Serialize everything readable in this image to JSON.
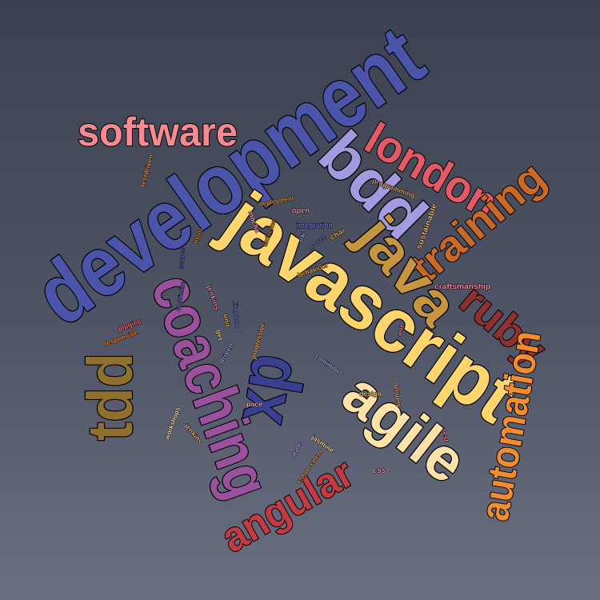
{
  "words": [
    {
      "text": "development",
      "color": "#4a54a8"
    },
    {
      "text": "javascript",
      "color": "#ffd56e"
    },
    {
      "text": "coaching",
      "color": "#98519a"
    },
    {
      "text": "software",
      "color": "#f58a92"
    },
    {
      "text": "london",
      "color": "#e35966"
    },
    {
      "text": "bdd",
      "color": "#a39ae0"
    },
    {
      "text": "training",
      "color": "#c8692a"
    },
    {
      "text": "java",
      "color": "#c69540"
    },
    {
      "text": "ruby",
      "color": "#8e2f30"
    },
    {
      "text": "automation",
      "color": "#f28d2f"
    },
    {
      "text": "agile",
      "color": "#ffe2a8"
    },
    {
      "text": "angular",
      "color": "#c33a42"
    },
    {
      "text": "tdd",
      "color": "#8f702e"
    },
    {
      "text": "xp",
      "color": "#3a3f8f"
    },
    {
      "text": "craftsmanship",
      "color": "#e88ca2"
    },
    {
      "text": "sustainable",
      "color": "#e8b77a"
    },
    {
      "text": "programming",
      "color": "#c09a6a"
    },
    {
      "text": "testdriven",
      "color": "#d88a5a"
    },
    {
      "text": "deployment",
      "color": "#d59030"
    },
    {
      "text": "open",
      "color": "#e28792"
    },
    {
      "text": "integration",
      "color": "#6d73c0"
    },
    {
      "text": "mocha",
      "color": "#f0a0a8"
    },
    {
      "text": "extreme",
      "color": "#c07a3a"
    },
    {
      "text": "chai",
      "color": "#d6a25a"
    },
    {
      "text": "ok",
      "color": "#8a8fd0"
    },
    {
      "text": "maven",
      "color": "#6b73b9"
    },
    {
      "text": "html",
      "color": "#c8783a"
    },
    {
      "text": "source",
      "color": "#5860a8"
    },
    {
      "text": "behaviour",
      "color": "#e0a040"
    },
    {
      "text": "customise",
      "color": "#6a72c0"
    },
    {
      "text": "jenkins",
      "color": "#d88aa0"
    },
    {
      "text": "kingdom",
      "color": "#6d73c0"
    },
    {
      "text": "unit",
      "color": "#d8a050"
    },
    {
      "text": "plugins",
      "color": "#e86870"
    },
    {
      "text": "responsive",
      "color": "#f08030"
    },
    {
      "text": "progressive",
      "color": "#e0a058"
    },
    {
      "text": "ant",
      "color": "#d87890"
    },
    {
      "text": "get",
      "color": "#d8c080"
    },
    {
      "text": "driven",
      "color": "#a098d8"
    },
    {
      "text": "continuous",
      "color": "#9aa0e0"
    },
    {
      "text": "design",
      "color": "#e8c080"
    },
    {
      "text": "delivery",
      "color": "#d8a070"
    },
    {
      "text": "pace",
      "color": "#f0a8b0"
    },
    {
      "text": "workshops",
      "color": "#f0d8a0"
    },
    {
      "text": "jenkins",
      "color": "#d8b080"
    },
    {
      "text": "test",
      "color": "#e88090"
    },
    {
      "text": "jasmine",
      "color": "#f0d090"
    },
    {
      "text": "made",
      "color": "#a898d8"
    },
    {
      "text": "enhancement",
      "color": "#c89860"
    },
    {
      "text": "css",
      "color": "#d8a0b8"
    }
  ]
}
